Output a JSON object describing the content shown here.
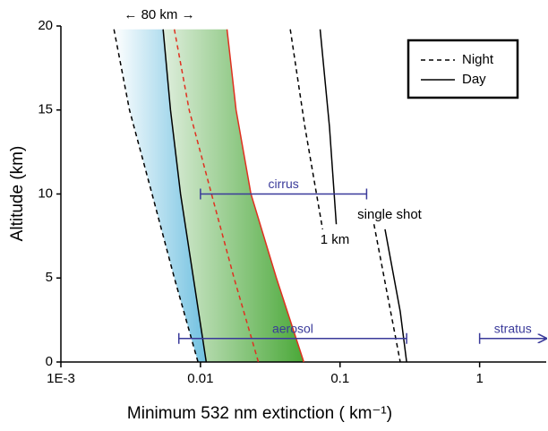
{
  "chart_data": {
    "type": "line",
    "x_label": "Minimum 532 nm extinction ( km⁻¹)",
    "y_label": "Altitude (km)",
    "log_x": true,
    "xlim": [
      0.001,
      3
    ],
    "xticks": [
      {
        "value": 0.001,
        "label": "1E-3"
      },
      0.01,
      0.1,
      1
    ],
    "ylim": [
      0,
      20
    ],
    "yticks": [
      0,
      5,
      10,
      15,
      20
    ],
    "legend": [
      {
        "label": "Night",
        "dashed": true
      },
      {
        "label": "Day",
        "dashed": false
      }
    ],
    "legend_position": "upper right",
    "series": [
      {
        "color": "#000000",
        "dashed": true,
        "x": [
          0.0024,
          0.0031,
          0.0045,
          0.0065,
          0.0096
        ],
        "values": [
          19.8,
          15,
          10,
          5,
          0
        ]
      },
      {
        "color": "#000000",
        "dashed": false,
        "x": [
          0.0054,
          0.0061,
          0.0072,
          0.0089,
          0.011
        ],
        "values": [
          19.8,
          15,
          10,
          5,
          0
        ]
      },
      {
        "color": "#e03020",
        "dashed": true,
        "x": [
          0.0065,
          0.0083,
          0.012,
          0.0174,
          0.026
        ],
        "values": [
          19.8,
          15,
          10,
          5,
          0
        ]
      },
      {
        "color": "#e03020",
        "dashed": false,
        "x": [
          0.0155,
          0.018,
          0.023,
          0.035,
          0.055
        ],
        "values": [
          19.8,
          15,
          10,
          5,
          0
        ]
      },
      {
        "color": "#000000",
        "dashed": true,
        "x": [
          0.044,
          0.056,
          0.075
        ],
        "values": [
          19.8,
          14,
          7.9
        ]
      },
      {
        "color": "#000000",
        "dashed": false,
        "x": [
          0.072,
          0.084,
          0.094
        ],
        "values": [
          19.8,
          14,
          8.2
        ]
      },
      {
        "color": "#000000",
        "dashed": true,
        "x": [
          0.175,
          0.27
        ],
        "values": [
          8.2,
          0
        ]
      },
      {
        "color": "#000000",
        "dashed": false,
        "x": [
          0.21,
          0.27,
          0.3
        ],
        "values": [
          7.9,
          3,
          0
        ]
      }
    ],
    "ranges": [
      {
        "label": "cirrus",
        "x": [
          0.01,
          0.155
        ],
        "y": 10,
        "color": "#3a3a9a"
      },
      {
        "label": "aerosol",
        "x": [
          0.007,
          0.3
        ],
        "y": 1.4,
        "color": "#3a3a9a"
      },
      {
        "label": "stratus",
        "x": [
          1,
          3
        ],
        "y": 1.4,
        "color": "#3a3a9a"
      }
    ],
    "annotations": [
      "← 80 km →",
      "1 km",
      "single shot"
    ]
  }
}
